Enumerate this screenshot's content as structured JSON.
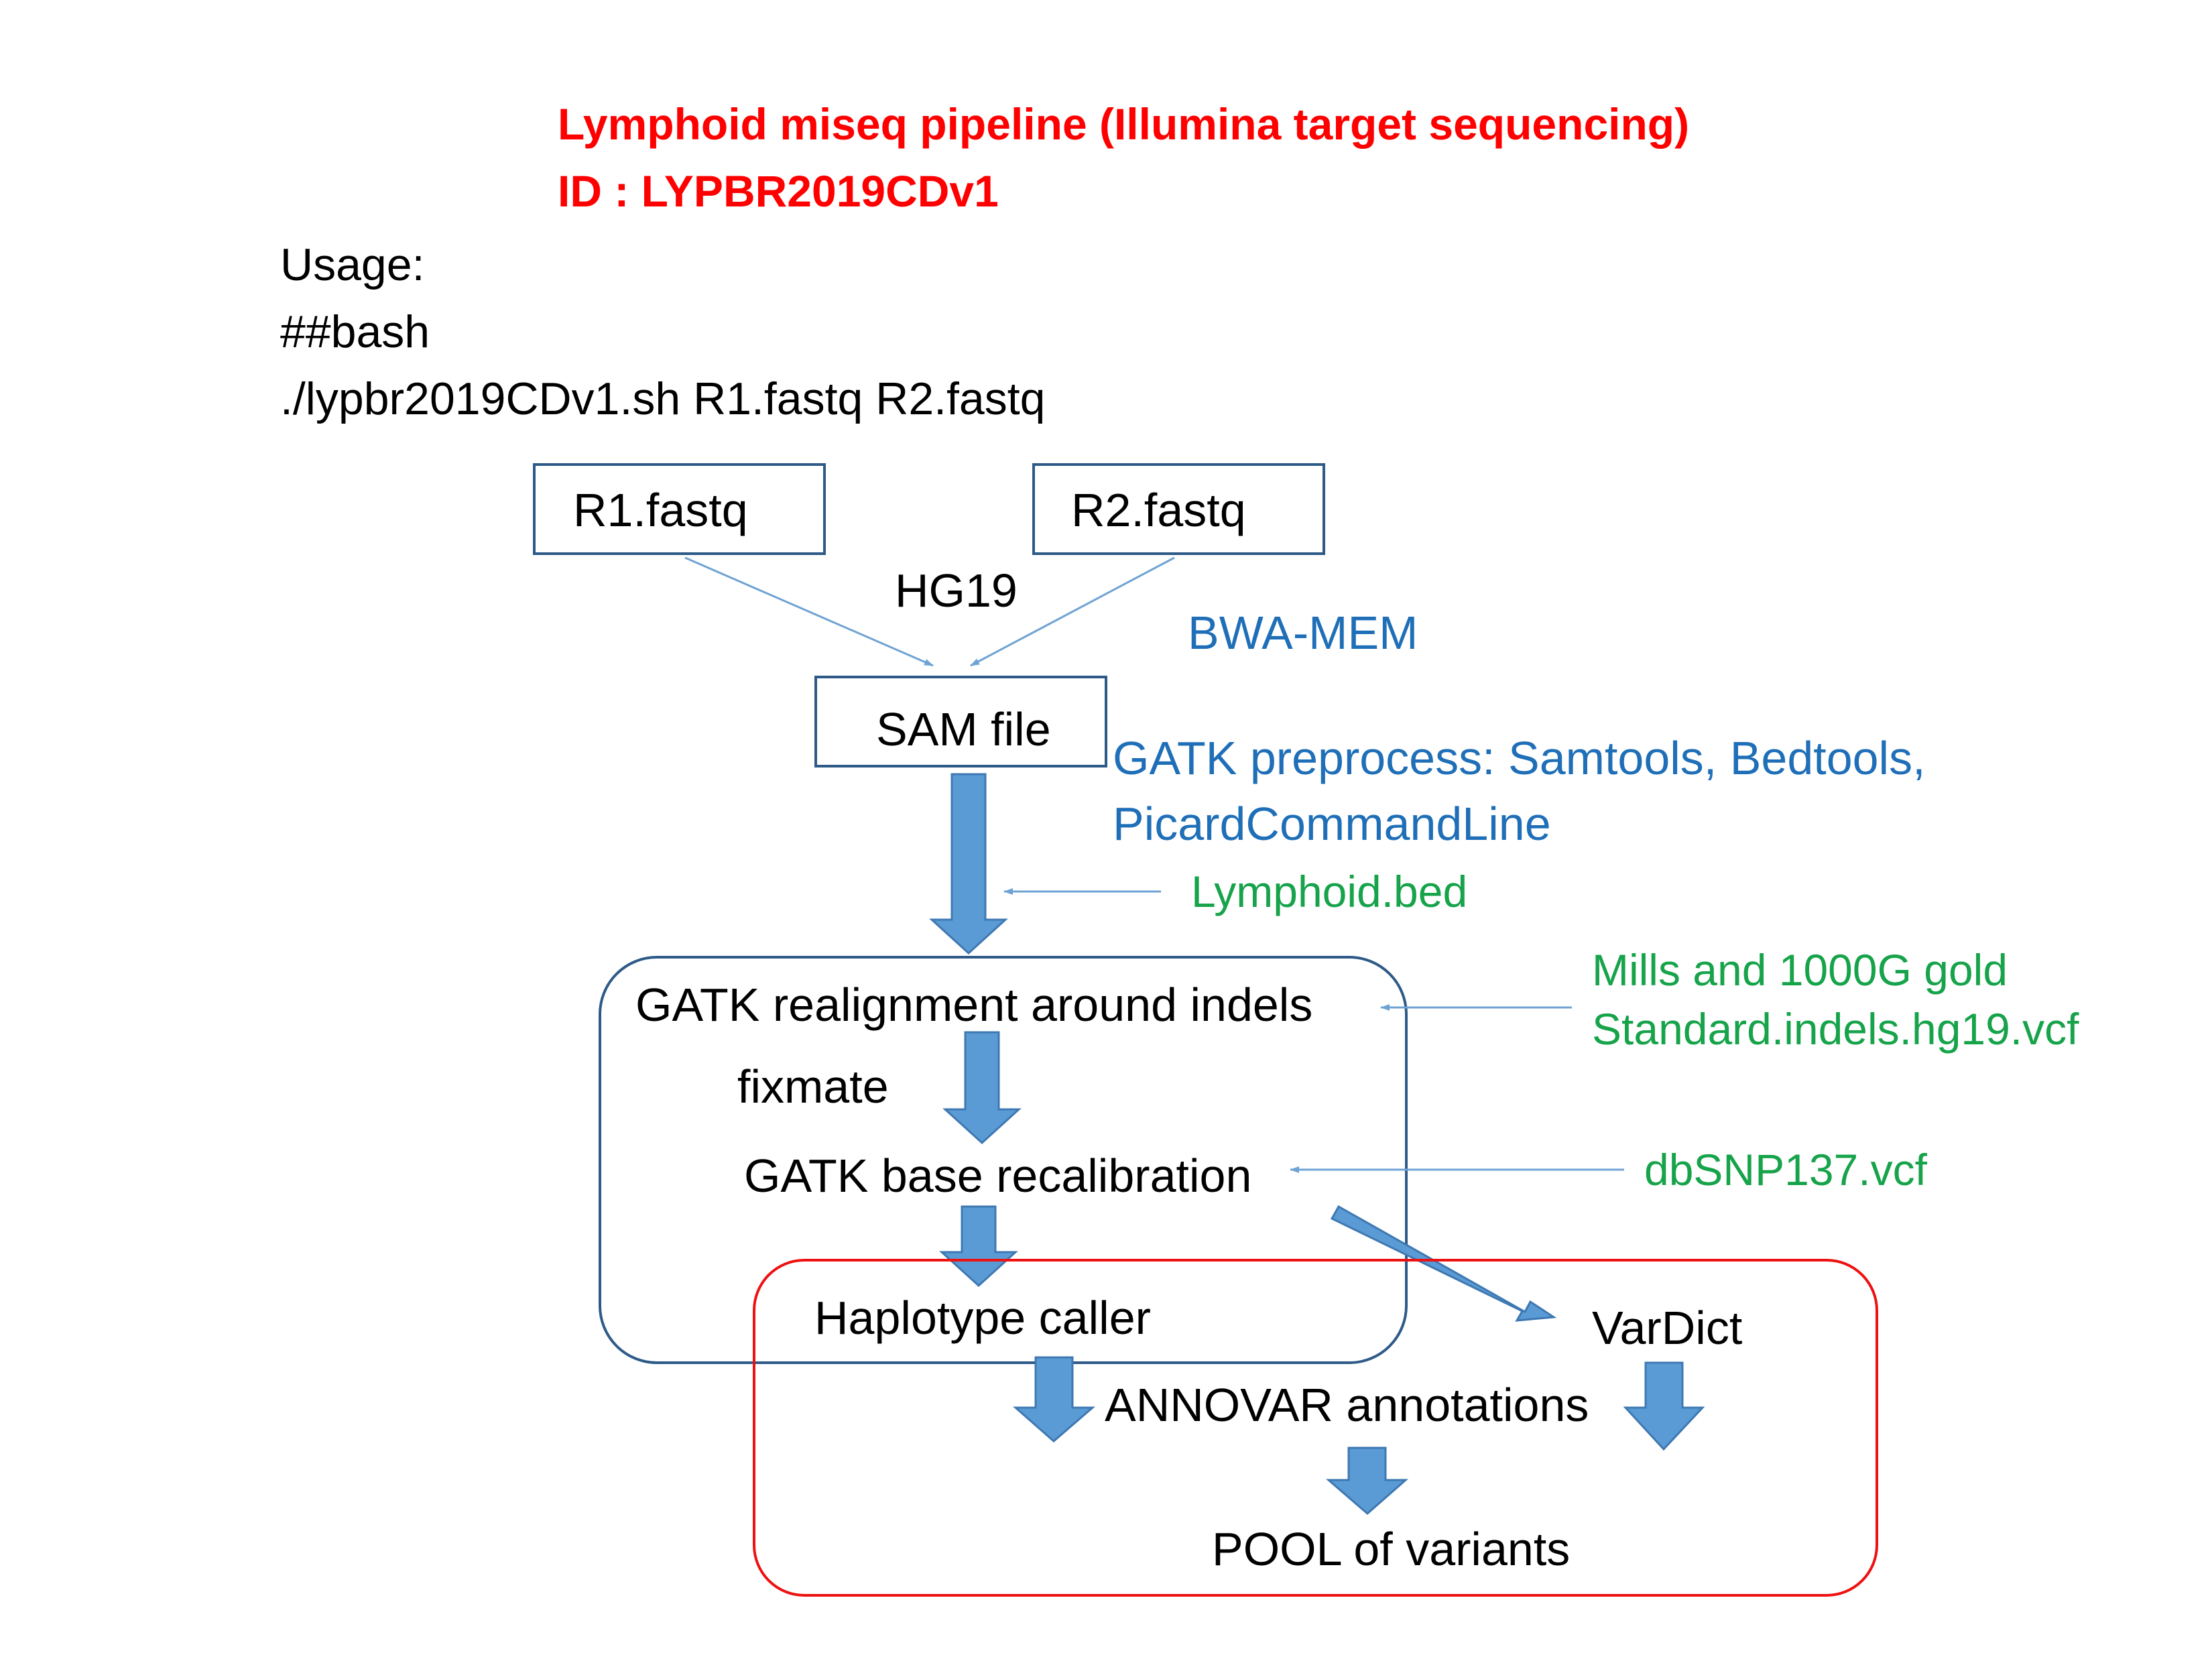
{
  "colors": {
    "title": "#ff0000",
    "text": "#000000",
    "tool": "#1f6fb8",
    "reference": "#16a34a",
    "box_border": "#2e5a88",
    "red_box": "#ee1111",
    "arrow_fill": "#5b9bd5",
    "arrow_stroke": "#3e78b2",
    "thin_arrow": "#6fa3d4"
  },
  "title": {
    "line1": "Lymphoid miseq pipeline (Illumina target sequencing)",
    "line2": "ID : LYPBR2019CDv1"
  },
  "usage": {
    "line1": "Usage:",
    "line2": "##bash",
    "line3": "./lypbr2019CDv1.sh R1.fastq R2.fastq"
  },
  "nodes": {
    "r1": "R1.fastq",
    "r2": "R2.fastq",
    "sam": "SAM file",
    "realign": "GATK realignment around indels",
    "fixmate": "fixmate",
    "base_recal": "GATK base recalibration",
    "haplotype": "Haplotype caller",
    "vardict": "VarDict",
    "annovar": "ANNOVAR annotations",
    "pool": "POOL of variants"
  },
  "labels": {
    "hg19": "HG19",
    "bwa": "BWA-MEM",
    "gatk_pre_1": "GATK preprocess: Samtools, Bedtools,",
    "gatk_pre_2": "PicardCommandLine",
    "bed": "Lymphoid.bed",
    "mills_1": "Mills and 1000G gold",
    "mills_2": "Standard.indels.hg19.vcf",
    "dbsnp": "dbSNP137.vcf"
  }
}
